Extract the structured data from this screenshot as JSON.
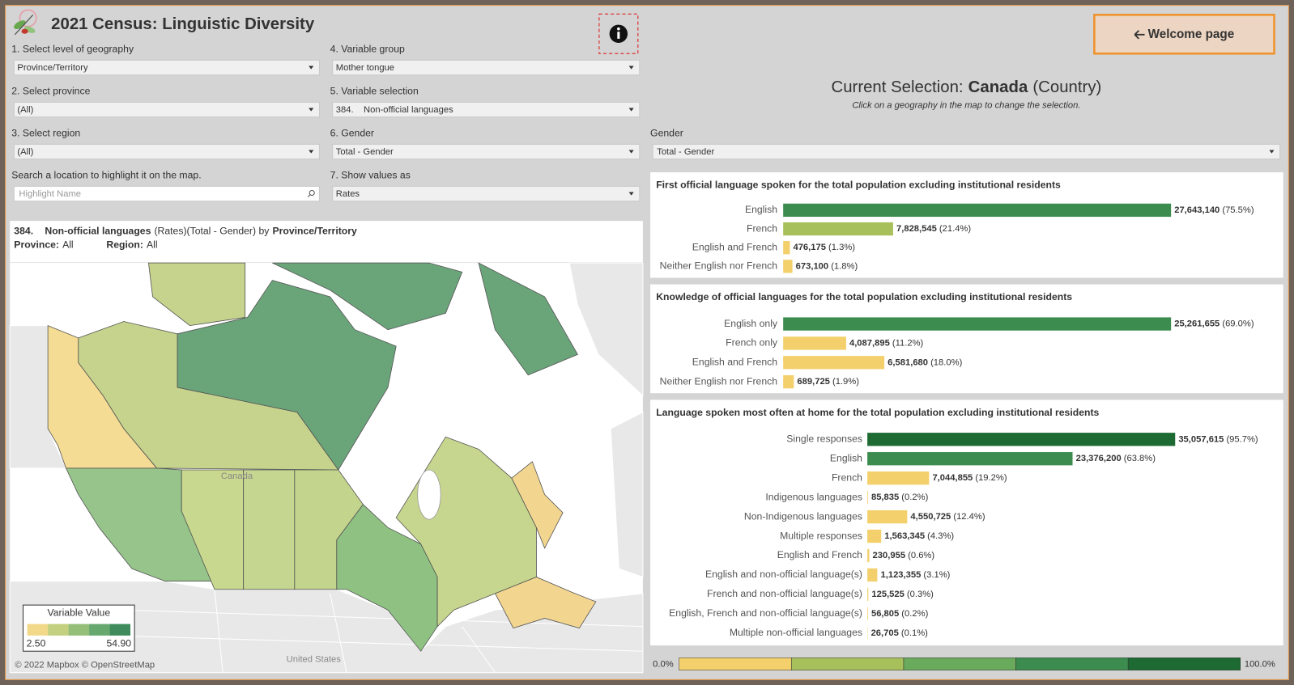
{
  "header": {
    "title": "2021 Census: Linguistic Diversity",
    "welcome_button": "Welcome page"
  },
  "filters": [
    {
      "label": "1. Select level of geography",
      "value": "Province/Territory"
    },
    {
      "label": "2. Select province",
      "value": "(All)"
    },
    {
      "label": "3. Select region",
      "value": "(All)"
    },
    {
      "label": "Search a location to highlight it on the map.",
      "placeholder": "Highlight Name"
    },
    {
      "label": "4. Variable group",
      "value": "Mother tongue"
    },
    {
      "label": "5. Variable selection",
      "value": "384.    Non-official languages"
    },
    {
      "label": "6. Gender",
      "value": "Total - Gender"
    },
    {
      "label": "7. Show values as",
      "value": "Rates"
    }
  ],
  "selection": {
    "prefix": "Current Selection:",
    "name": "Canada",
    "level": "(Country)",
    "hint": "Click on a geography in the map to change the selection."
  },
  "gender_filter": {
    "label": "Gender",
    "value": "Total - Gender"
  },
  "map": {
    "title_code": "384.",
    "title_variable": "Non-official languages",
    "title_mode": "(Rates)(Total - Gender) by",
    "title_geo": "Province/Territory",
    "province_label": "Province:",
    "province_value": "All",
    "region_label": "Region:",
    "region_value": "All",
    "country_label": "Canada",
    "us_label": "United States",
    "attribution": "© 2022 Mapbox © OpenStreetMap",
    "legend": {
      "title": "Variable Value",
      "min_label": "2.50",
      "max_label": "54.90",
      "colors": [
        "#f2d98a",
        "#c3d07f",
        "#95bf78",
        "#67a86f",
        "#3f8b5c"
      ]
    }
  },
  "charts": [
    {
      "title": "First official language spoken for the total population excluding institutional residents",
      "bars": [
        {
          "category": "English",
          "value": "27,643,140",
          "percent": 75.5,
          "percent_label": "(75.5%)"
        },
        {
          "category": "French",
          "value": "7,828,545",
          "percent": 21.4,
          "percent_label": "(21.4%)"
        },
        {
          "category": "English and French",
          "value": "476,175",
          "percent": 1.3,
          "percent_label": "(1.3%)"
        },
        {
          "category": "Neither English nor French",
          "value": "673,100",
          "percent": 1.8,
          "percent_label": "(1.8%)"
        }
      ]
    },
    {
      "title": "Knowledge of official languages for the total population excluding institutional residents",
      "bars": [
        {
          "category": "English only",
          "value": "25,261,655",
          "percent": 69.0,
          "percent_label": "(69.0%)"
        },
        {
          "category": "French only",
          "value": "4,087,895",
          "percent": 11.2,
          "percent_label": "(11.2%)"
        },
        {
          "category": "English and French",
          "value": "6,581,680",
          "percent": 18.0,
          "percent_label": "(18.0%)"
        },
        {
          "category": "Neither English nor French",
          "value": "689,725",
          "percent": 1.9,
          "percent_label": "(1.9%)"
        }
      ]
    },
    {
      "title": "Language spoken most often at home for the total population excluding institutional residents",
      "bars": [
        {
          "category": "Single responses",
          "value": "35,057,615",
          "percent": 95.7,
          "percent_label": "(95.7%)"
        },
        {
          "category": "English",
          "value": "23,376,200",
          "percent": 63.8,
          "percent_label": "(63.8%)"
        },
        {
          "category": "French",
          "value": "7,044,855",
          "percent": 19.2,
          "percent_label": "(19.2%)"
        },
        {
          "category": "Indigenous languages",
          "value": "85,835",
          "percent": 0.2,
          "percent_label": "(0.2%)"
        },
        {
          "category": "Non-Indigenous languages",
          "value": "4,550,725",
          "percent": 12.4,
          "percent_label": "(12.4%)"
        },
        {
          "category": "Multiple responses",
          "value": "1,563,345",
          "percent": 4.3,
          "percent_label": "(4.3%)"
        },
        {
          "category": "English and French",
          "value": "230,955",
          "percent": 0.6,
          "percent_label": "(0.6%)"
        },
        {
          "category": "English and non-official language(s)",
          "value": "1,123,355",
          "percent": 3.1,
          "percent_label": "(3.1%)"
        },
        {
          "category": "French and non-official language(s)",
          "value": "125,525",
          "percent": 0.3,
          "percent_label": "(0.3%)"
        },
        {
          "category": "English, French and non-official language(s)",
          "value": "56,805",
          "percent": 0.2,
          "percent_label": "(0.2%)"
        },
        {
          "category": "Multiple non-official languages",
          "value": "26,705",
          "percent": 0.1,
          "percent_label": "(0.1%)"
        }
      ]
    }
  ],
  "percent_legend": {
    "min": 0,
    "max": 100,
    "min_label": "0.0%",
    "max_label": "100.0%",
    "colors": [
      "#f3d06b",
      "#a8c05b",
      "#6aaa5c",
      "#3d8c4f",
      "#1d6b33"
    ]
  }
}
